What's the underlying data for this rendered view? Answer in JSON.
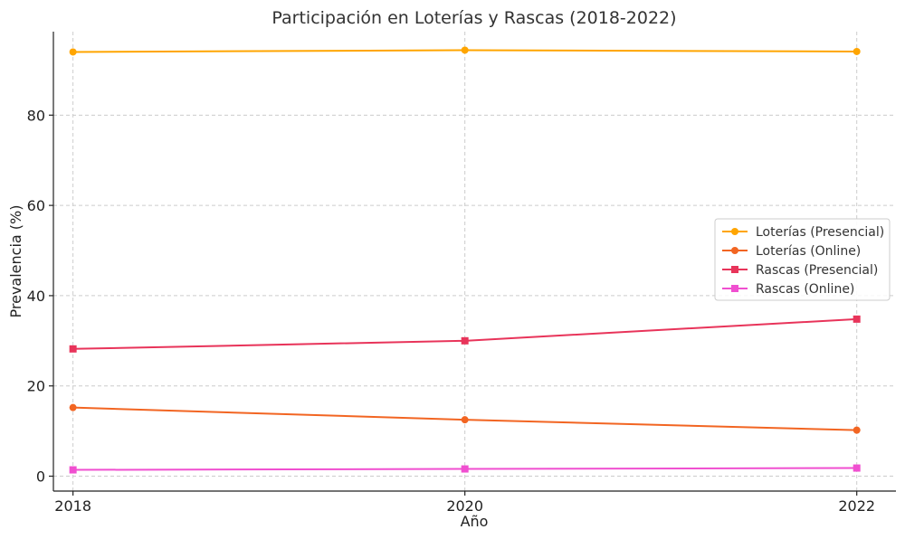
{
  "chart_data": {
    "type": "line",
    "title": "Participación en Loterías y Rascas (2018-2022)",
    "xlabel": "Año",
    "ylabel": "Prevalencia (%)",
    "x": [
      2018,
      2020,
      2022
    ],
    "x_tick_labels": [
      "2018",
      "2020",
      "2022"
    ],
    "y_ticks": [
      0,
      20,
      40,
      60,
      80
    ],
    "ylim": [
      -3.3,
      98.5
    ],
    "xlim": [
      2017.9,
      2022.2
    ],
    "grid": true,
    "legend_position": "center-right",
    "series": [
      {
        "name": "Loterías (Presencial)",
        "values": [
          94.0,
          94.4,
          94.1
        ],
        "color": "#FFA500",
        "marker": "circle"
      },
      {
        "name": "Loterías (Online)",
        "values": [
          15.2,
          12.5,
          10.2
        ],
        "color": "#F26522",
        "marker": "circle"
      },
      {
        "name": "Rascas (Presencial)",
        "values": [
          28.2,
          30.0,
          34.8
        ],
        "color": "#E8345A",
        "marker": "square"
      },
      {
        "name": "Rascas (Online)",
        "values": [
          1.4,
          1.6,
          1.8
        ],
        "color": "#F04FD0",
        "marker": "square"
      }
    ]
  }
}
